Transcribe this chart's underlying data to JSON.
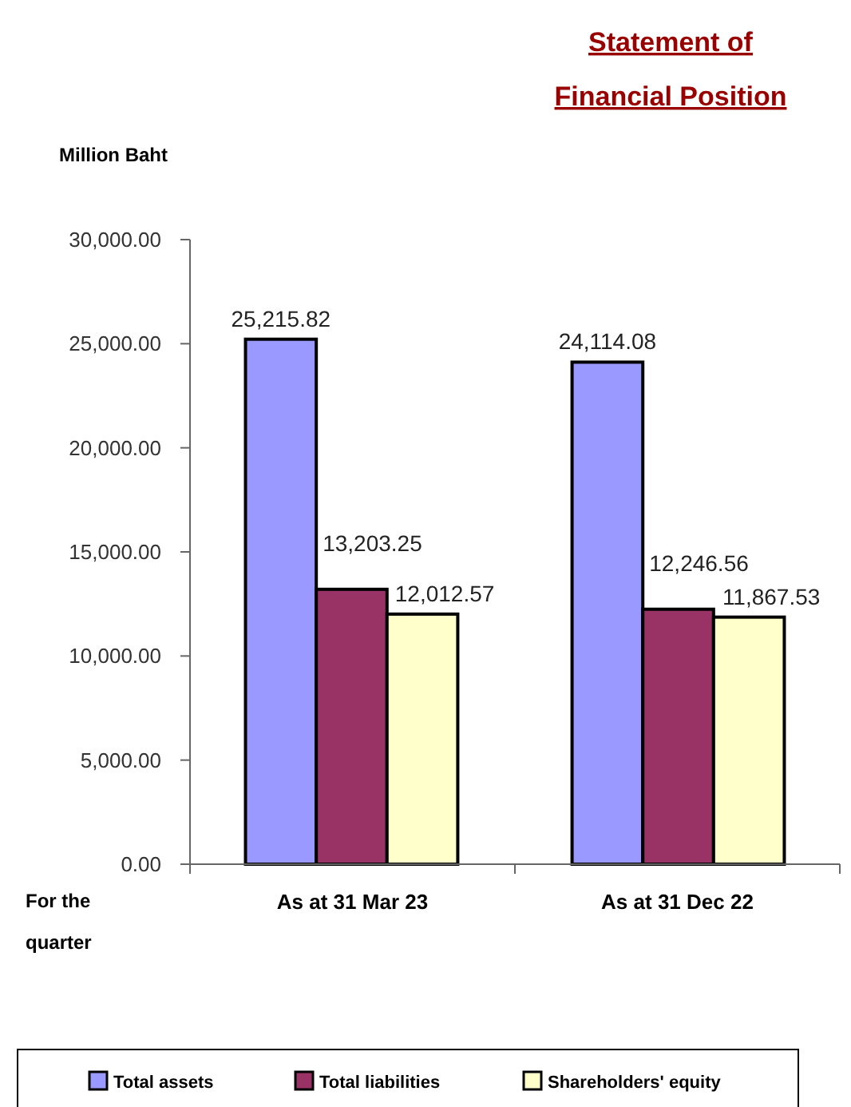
{
  "chart_data": {
    "type": "bar",
    "title": "Statement of Financial Position",
    "ylabel": "Million Baht",
    "xlabel": "For the quarter",
    "categories": [
      "As at 31 Mar 23",
      "As at 31 Dec 22"
    ],
    "series": [
      {
        "name": "Total assets",
        "color": "#9999ff",
        "values": [
          25215.82,
          24114.08
        ],
        "value_labels": [
          "25,215.82",
          "24,114.08"
        ]
      },
      {
        "name": "Total liabilities",
        "color": "#993366",
        "values": [
          13203.25,
          12246.56
        ],
        "value_labels": [
          "13,203.25",
          "12,246.56"
        ]
      },
      {
        "name": "Shareholders' equity",
        "color": "#ffffcc",
        "values": [
          12012.57,
          11867.53
        ],
        "value_labels": [
          "12,012.57",
          "11,867.53"
        ]
      }
    ],
    "ylim": [
      0,
      30000
    ],
    "yticks": [
      {
        "value": 0,
        "label": "0.00"
      },
      {
        "value": 5000,
        "label": "5,000.00"
      },
      {
        "value": 10000,
        "label": "10,000.00"
      },
      {
        "value": 15000,
        "label": "15,000.00"
      },
      {
        "value": 20000,
        "label": "20,000.00"
      },
      {
        "value": 25000,
        "label": "25,000.00"
      },
      {
        "value": 30000,
        "label": "30,000.00"
      }
    ],
    "grid": false,
    "legend": "bottom"
  }
}
